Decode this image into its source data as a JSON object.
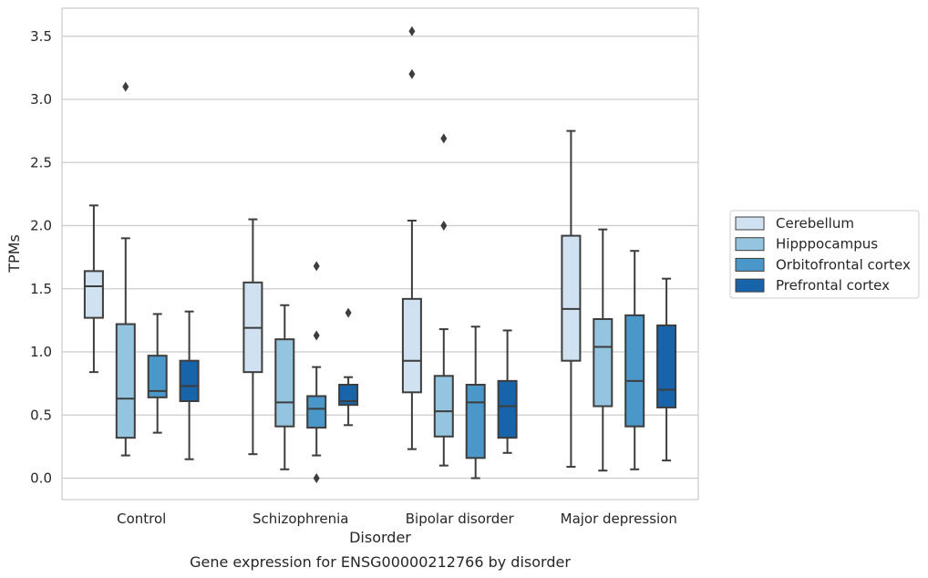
{
  "chart_data": {
    "type": "box",
    "title": "",
    "caption": "Gene expression for ENSG00000212766 by disorder",
    "xlabel": "Disorder",
    "ylabel": "TPMs",
    "ylim": [
      -0.17,
      3.72
    ],
    "yticks": [
      0.0,
      0.5,
      1.0,
      1.5,
      2.0,
      2.5,
      3.0,
      3.5
    ],
    "ytick_labels": [
      "0.0",
      "0.5",
      "1.0",
      "1.5",
      "2.0",
      "2.5",
      "3.0",
      "3.5"
    ],
    "grid": "horizontal",
    "legend_position": "right",
    "categories": [
      "Control",
      "Schizophrenia",
      "Bipolar disorder",
      "Major depression"
    ],
    "series": [
      {
        "name": "Cerebellum",
        "color": "#d0e1f2",
        "boxes": [
          {
            "whisker_low": 0.84,
            "q1": 1.27,
            "median": 1.52,
            "q3": 1.64,
            "whisker_high": 2.16,
            "outliers": []
          },
          {
            "whisker_low": 0.19,
            "q1": 0.84,
            "median": 1.19,
            "q3": 1.55,
            "whisker_high": 2.05,
            "outliers": []
          },
          {
            "whisker_low": 0.23,
            "q1": 0.68,
            "median": 0.93,
            "q3": 1.42,
            "whisker_high": 2.04,
            "outliers": [
              3.2,
              3.54
            ]
          },
          {
            "whisker_low": 0.09,
            "q1": 0.93,
            "median": 1.34,
            "q3": 1.92,
            "whisker_high": 2.75,
            "outliers": []
          }
        ]
      },
      {
        "name": "Hipppocampus",
        "color": "#94c4df",
        "boxes": [
          {
            "whisker_low": 0.18,
            "q1": 0.32,
            "median": 0.63,
            "q3": 1.22,
            "whisker_high": 1.9,
            "outliers": [
              3.1
            ]
          },
          {
            "whisker_low": 0.07,
            "q1": 0.41,
            "median": 0.6,
            "q3": 1.1,
            "whisker_high": 1.37,
            "outliers": []
          },
          {
            "whisker_low": 0.1,
            "q1": 0.33,
            "median": 0.53,
            "q3": 0.81,
            "whisker_high": 1.18,
            "outliers": [
              2.0,
              2.69
            ]
          },
          {
            "whisker_low": 0.06,
            "q1": 0.57,
            "median": 1.04,
            "q3": 1.26,
            "whisker_high": 1.97,
            "outliers": []
          }
        ]
      },
      {
        "name": "Orbitofrontal cortex",
        "color": "#4a98c9",
        "boxes": [
          {
            "whisker_low": 0.36,
            "q1": 0.64,
            "median": 0.69,
            "q3": 0.97,
            "whisker_high": 1.3,
            "outliers": []
          },
          {
            "whisker_low": 0.18,
            "q1": 0.4,
            "median": 0.55,
            "q3": 0.65,
            "whisker_high": 0.88,
            "outliers": [
              0.0,
              1.13,
              1.68
            ]
          },
          {
            "whisker_low": 0.0,
            "q1": 0.16,
            "median": 0.6,
            "q3": 0.74,
            "whisker_high": 1.2,
            "outliers": []
          },
          {
            "whisker_low": 0.07,
            "q1": 0.41,
            "median": 0.77,
            "q3": 1.29,
            "whisker_high": 1.8,
            "outliers": []
          }
        ]
      },
      {
        "name": "Prefrontal cortex",
        "color": "#1764ab",
        "boxes": [
          {
            "whisker_low": 0.15,
            "q1": 0.61,
            "median": 0.73,
            "q3": 0.93,
            "whisker_high": 1.32,
            "outliers": []
          },
          {
            "whisker_low": 0.42,
            "q1": 0.58,
            "median": 0.61,
            "q3": 0.74,
            "whisker_high": 0.8,
            "outliers": [
              1.31
            ]
          },
          {
            "whisker_low": 0.2,
            "q1": 0.32,
            "median": 0.57,
            "q3": 0.77,
            "whisker_high": 1.17,
            "outliers": []
          },
          {
            "whisker_low": 0.14,
            "q1": 0.56,
            "median": 0.7,
            "q3": 1.21,
            "whisker_high": 1.58,
            "outliers": []
          }
        ]
      }
    ]
  },
  "style": {
    "line_color": "#3d3d3d",
    "grid_color": "#cccccc",
    "frame_color": "#cccccc"
  }
}
